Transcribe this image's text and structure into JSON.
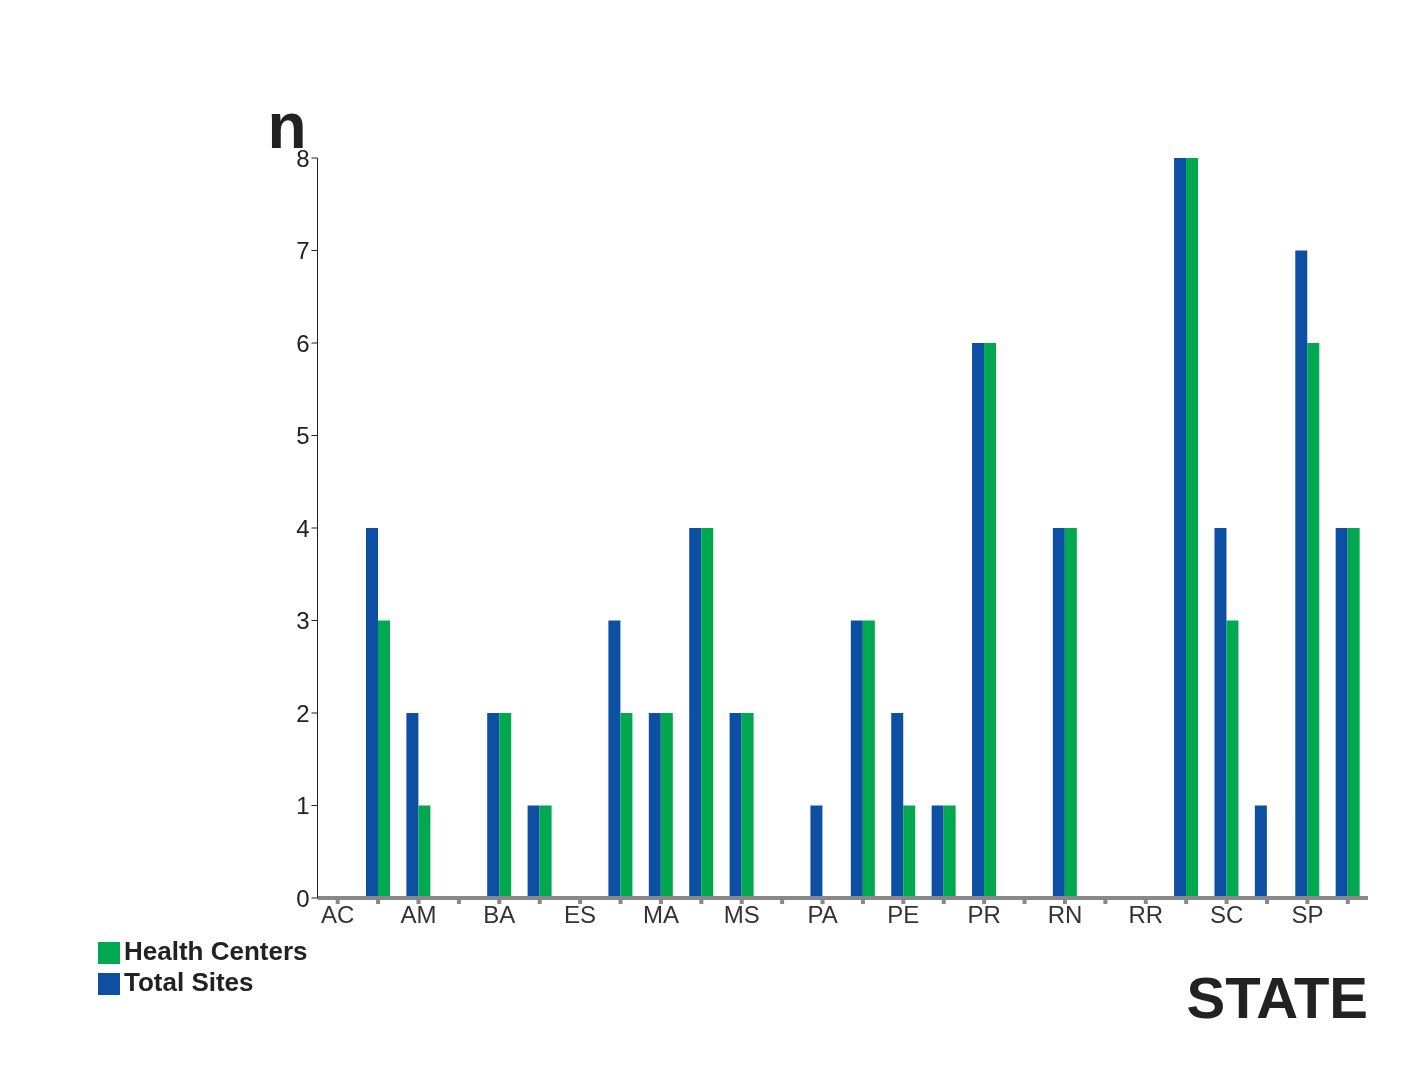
{
  "chart_data": {
    "type": "bar",
    "xlabel": "STATE",
    "ylabel": "n",
    "categories": [
      "AC",
      null,
      "AM",
      null,
      "BA",
      null,
      "ES",
      null,
      "MA",
      null,
      "MS",
      null,
      "PA",
      null,
      "PE",
      null,
      "PR",
      null,
      "RN",
      null,
      "RR",
      null,
      "SC",
      null,
      "SP",
      null
    ],
    "series": [
      {
        "name": "Total Sites",
        "color": "#0d4fa3",
        "values": [
          0,
          4,
          2,
          0,
          2,
          1,
          0,
          3,
          2,
          4,
          2,
          0,
          1,
          3,
          2,
          1,
          6,
          0,
          4,
          0,
          0,
          8,
          4,
          1,
          7,
          4
        ]
      },
      {
        "name": "Health Centers",
        "color": "#00a94f",
        "values": [
          0,
          3,
          1,
          0,
          2,
          1,
          0,
          2,
          2,
          4,
          2,
          0,
          0,
          3,
          1,
          1,
          6,
          0,
          4,
          0,
          0,
          8,
          3,
          0,
          6,
          4
        ]
      }
    ],
    "ylim": [
      0,
      8
    ],
    "yticks": [
      0,
      1,
      2,
      3,
      4,
      5,
      6,
      7,
      8
    ],
    "grid": false,
    "legend": "bottom left"
  }
}
